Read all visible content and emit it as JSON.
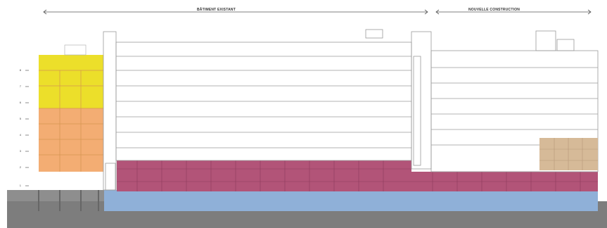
{
  "dimensions": {
    "existing_label": "BÂTIMENT EXISTANT",
    "new_label": "NOUVELLE CONSTRUCTION"
  },
  "level_markers": [
    "8",
    "7",
    "6",
    "5",
    "4",
    "3",
    "2",
    "1"
  ],
  "colors": {
    "yellow_block": "#ecdf2a",
    "orange_block": "#f3ad73",
    "podium": "#b25478",
    "basement": "#8fb0d8",
    "ground": "#7d7d7d",
    "tan_block": "#d6ba98",
    "line": "#9a9a9a"
  }
}
